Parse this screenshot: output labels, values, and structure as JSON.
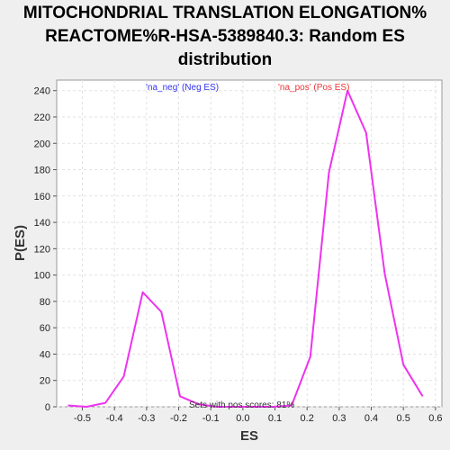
{
  "chart_data": {
    "type": "line",
    "title_lines": [
      "MITOCHONDRIAL TRANSLATION ELONGATION%",
      "REACTOME%R-HSA-5389840.3: Random ES",
      "distribution"
    ],
    "xlabel": "ES",
    "ylabel": "P(ES)",
    "xlim": [
      -0.58,
      0.62
    ],
    "ylim": [
      0,
      248
    ],
    "x_ticks": [
      -0.5,
      -0.4,
      -0.3,
      -0.2,
      -0.1,
      0.0,
      0.1,
      0.2,
      0.3,
      0.4,
      0.5,
      0.6
    ],
    "x_tick_labels": [
      "-0.5",
      "-0.4",
      "-0.3",
      "-0.2",
      "-0.1",
      "0.0",
      "0.1",
      "0.2",
      "0.3",
      "0.4",
      "0.5",
      "0.6"
    ],
    "y_ticks": [
      0,
      20,
      40,
      60,
      80,
      100,
      120,
      140,
      160,
      180,
      200,
      220,
      240
    ],
    "y_tick_labels": [
      "0",
      "20",
      "40",
      "60",
      "80",
      "100",
      "120",
      "140",
      "160",
      "180",
      "200",
      "220",
      "240"
    ],
    "grid": true,
    "series": [
      {
        "color": "#ee33ee",
        "x": [
          -0.545,
          -0.487,
          -0.428,
          -0.371,
          -0.312,
          -0.254,
          -0.196,
          -0.138,
          -0.08,
          -0.022,
          0.036,
          0.094,
          0.152,
          0.21,
          0.268,
          0.326,
          0.384,
          0.442,
          0.5,
          0.56
        ],
        "y": [
          1,
          0,
          3,
          23,
          87,
          72,
          8,
          2,
          0,
          0,
          0,
          0,
          1,
          38,
          178,
          240,
          208,
          101,
          32,
          8
        ]
      }
    ],
    "legend": [
      {
        "label": "'na_neg' (Neg ES)",
        "color": "#3333ee"
      },
      {
        "label": "'na_pos' (Pos ES)",
        "color": "#ee3333"
      }
    ],
    "annotation": "Sets with pos scores: 81%"
  }
}
